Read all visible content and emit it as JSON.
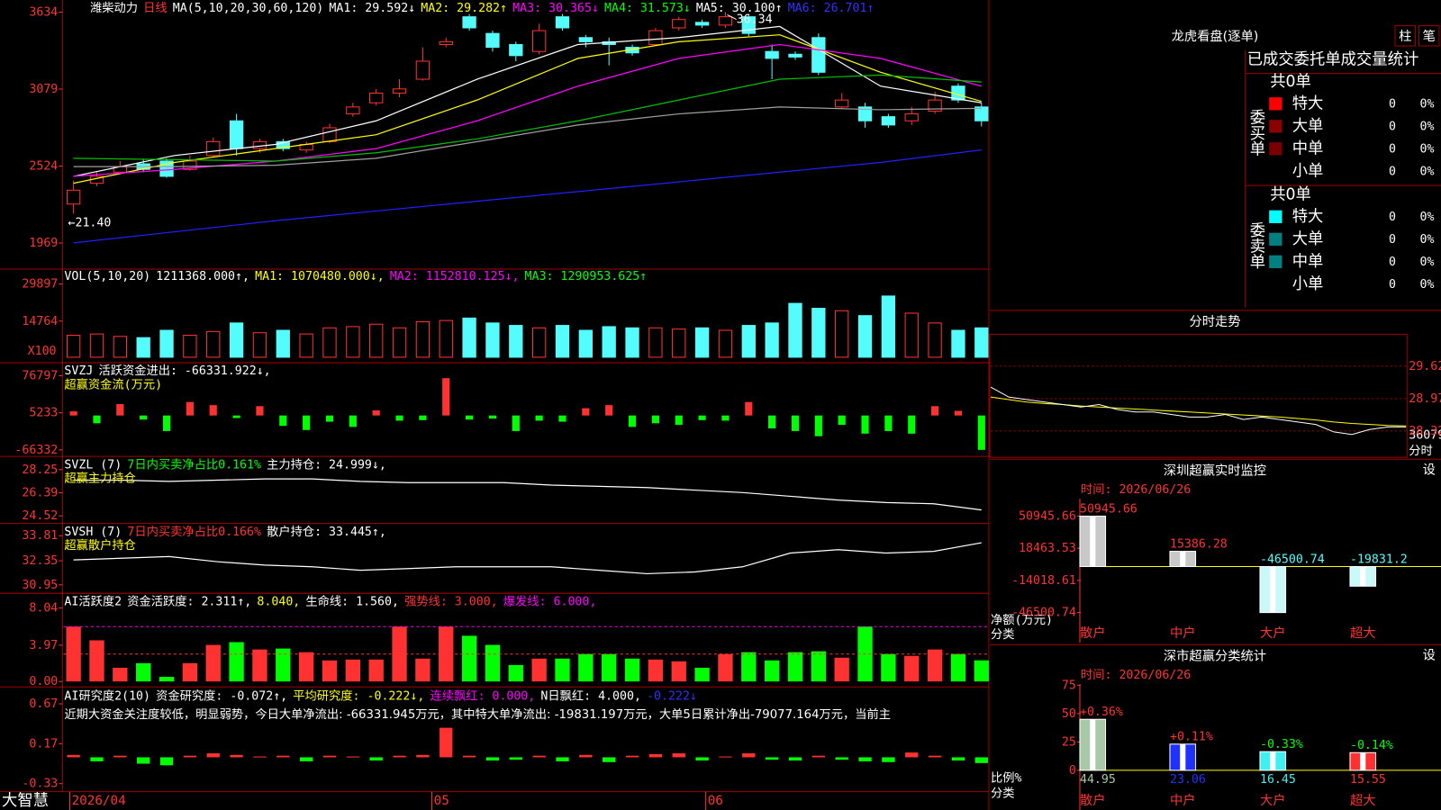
{
  "main": {
    "legend": [
      {
        "text": "潍柴动力",
        "color": "#ffffff"
      },
      {
        "text": "日线",
        "color": "#ff3232"
      },
      {
        "text": "MA(5,10,20,30,60,120)",
        "color": "#ffffff"
      },
      {
        "text": "MA1: 29.592↓",
        "color": "#ffffff"
      },
      {
        "text": "MA2: 29.282↑",
        "color": "#ffff00"
      },
      {
        "text": "MA3: 30.365↓",
        "color": "#ff00ff"
      },
      {
        "text": "MA4: 31.573↓",
        "color": "#00ff00"
      },
      {
        "text": "MA5: 30.100↑",
        "color": "#ffffff"
      },
      {
        "text": "MA6: 26.701↑",
        "color": "#3030ff"
      }
    ],
    "ylim": [
      1788,
      3721
    ],
    "yticks": [
      1969,
      2524,
      3079,
      3634
    ],
    "high_label": "36.34",
    "low_label": "←21.40",
    "candles": [
      [
        2250,
        2350,
        2420,
        2180
      ],
      [
        2400,
        2450,
        2480,
        2380
      ],
      [
        2480,
        2520,
        2560,
        2470
      ],
      [
        2540,
        2500,
        2570,
        2480
      ],
      [
        2560,
        2450,
        2580,
        2440
      ],
      [
        2500,
        2560,
        2600,
        2490
      ],
      [
        2600,
        2700,
        2730,
        2590
      ],
      [
        2850,
        2650,
        2900,
        2600
      ],
      [
        2650,
        2700,
        2720,
        2620
      ],
      [
        2700,
        2650,
        2720,
        2630
      ],
      [
        2640,
        2680,
        2700,
        2620
      ],
      [
        2700,
        2800,
        2830,
        2690
      ],
      [
        2900,
        2950,
        2980,
        2880
      ],
      [
        2980,
        3050,
        3080,
        2960
      ],
      [
        3050,
        3080,
        3150,
        3020
      ],
      [
        3150,
        3280,
        3380,
        3140
      ],
      [
        3400,
        3420,
        3450,
        3380
      ],
      [
        3600,
        3520,
        3620,
        3500
      ],
      [
        3480,
        3380,
        3500,
        3350
      ],
      [
        3400,
        3320,
        3420,
        3280
      ],
      [
        3350,
        3500,
        3550,
        3330
      ],
      [
        3600,
        3520,
        3620,
        3500
      ],
      [
        3450,
        3420,
        3470,
        3380
      ],
      [
        3420,
        3400,
        3450,
        3250
      ],
      [
        3380,
        3340,
        3400,
        3320
      ],
      [
        3400,
        3500,
        3520,
        3390
      ],
      [
        3520,
        3580,
        3600,
        3500
      ],
      [
        3560,
        3540,
        3580,
        3520
      ],
      [
        3540,
        3600,
        3634,
        3520
      ],
      [
        3600,
        3480,
        3620,
        3460
      ],
      [
        3350,
        3300,
        3400,
        3150
      ],
      [
        3330,
        3310,
        3350,
        3290
      ],
      [
        3450,
        3200,
        3480,
        3180
      ],
      [
        2950,
        3000,
        3050,
        2940
      ],
      [
        2950,
        2850,
        2980,
        2800
      ],
      [
        2880,
        2820,
        2900,
        2800
      ],
      [
        2850,
        2900,
        2950,
        2820
      ],
      [
        2920,
        3000,
        3060,
        2900
      ],
      [
        3100,
        3000,
        3120,
        2980
      ],
      [
        2950,
        2850,
        2980,
        2810
      ]
    ],
    "ma_lines": [
      {
        "color": "#ffffff",
        "values": [
          2450,
          2600,
          2680,
          2850,
          3150,
          3400,
          3450,
          3530,
          3100,
          2980
        ]
      },
      {
        "color": "#ffff00",
        "values": [
          2400,
          2550,
          2650,
          2750,
          3000,
          3300,
          3420,
          3470,
          3200,
          2990
        ]
      },
      {
        "color": "#ff00ff",
        "values": [
          2450,
          2500,
          2560,
          2650,
          2850,
          3100,
          3300,
          3400,
          3300,
          3100
        ]
      },
      {
        "color": "#00c000",
        "values": [
          2580,
          2570,
          2560,
          2620,
          2720,
          2850,
          3000,
          3150,
          3180,
          3130
        ]
      },
      {
        "color": "#a0a0a0",
        "values": [
          2520,
          2520,
          2530,
          2580,
          2700,
          2820,
          2900,
          2950,
          2930,
          2940
        ]
      },
      {
        "color": "#2020ff",
        "values": [
          1970,
          2050,
          2130,
          2200,
          2270,
          2340,
          2410,
          2480,
          2550,
          2640
        ]
      }
    ]
  },
  "volume": {
    "legend": [
      {
        "text": "VOL(5,10,20)",
        "color": "#ffffff"
      },
      {
        "text": "1211368.000↑,",
        "color": "#ffffff"
      },
      {
        "text": "MA1: 1070480.000↓,",
        "color": "#ffff00"
      },
      {
        "text": "MA2: 1152810.125↓,",
        "color": "#ff00ff"
      },
      {
        "text": "MA3: 1290953.625↑",
        "color": "#00ff00"
      }
    ],
    "unit_label": "X100",
    "ylim": [
      0,
      36000
    ],
    "yticks": [
      14764,
      29897
    ],
    "values": [
      9000,
      9500,
      8500,
      8000,
      11000,
      9000,
      10500,
      14000,
      10000,
      11000,
      9500,
      12000,
      12500,
      13500,
      12000,
      14500,
      15000,
      16000,
      14000,
      13000,
      12000,
      13000,
      11000,
      12500,
      12000,
      12000,
      11500,
      12000,
      11000,
      13000,
      14000,
      22000,
      20000,
      19000,
      17000,
      25000,
      18000,
      14000,
      11000,
      12000
    ]
  },
  "svzj": {
    "legend": [
      {
        "text": "SVZJ",
        "color": "#ffffff"
      },
      {
        "text": "活跃资金进出: -66331.922↓,",
        "color": "#ffffff"
      }
    ],
    "legend2": [
      {
        "text": "超赢资金流(万元)",
        "color": "#ffff00"
      }
    ],
    "ylim": [
      -79000,
      100000
    ],
    "yticks": [
      -66332,
      5233,
      76797
    ],
    "values": [
      8000,
      -15000,
      22000,
      -8000,
      -30000,
      26000,
      20000,
      -5000,
      18000,
      -20000,
      -28000,
      -12000,
      -22000,
      10000,
      -10000,
      -9000,
      72000,
      -8000,
      -6000,
      -30000,
      -10000,
      -12000,
      14000,
      20000,
      -22000,
      -15000,
      -18000,
      -9000,
      -10000,
      26000,
      -25000,
      -30000,
      -40000,
      -18000,
      -35000,
      -30000,
      -35000,
      18000,
      9000,
      -66331.922
    ]
  },
  "svzl": {
    "legend": [
      {
        "text": "SVZL (7)",
        "color": "#ffffff"
      },
      {
        "text": "7日内买卖净占比0.161%",
        "color": "#00ff00"
      },
      {
        "text": "主力持仓: 24.999↓,",
        "color": "#ffffff"
      }
    ],
    "legend2": [
      {
        "text": "超赢主力持仓",
        "color": "#ffff00"
      }
    ],
    "ylim": [
      23.91,
      29.24
    ],
    "yticks": [
      24.52,
      26.39,
      28.25
    ],
    "values": [
      27.4,
      27.4,
      27.3,
      27.4,
      27.5,
      27.5,
      27.3,
      27.2,
      27.2,
      27.2,
      27.0,
      26.9,
      26.8,
      26.6,
      26.4,
      26.1,
      25.8,
      25.6,
      25.5,
      25.0
    ]
  },
  "svsh": {
    "legend": [
      {
        "text": "SVSH (7)",
        "color": "#ffffff"
      },
      {
        "text": "7日内买卖净占比0.166%",
        "color": "#ff3232"
      },
      {
        "text": "散户持仓: 33.445↑,",
        "color": "#ffffff"
      }
    ],
    "legend2": [
      {
        "text": "超赢散户持仓",
        "color": "#ffff00"
      }
    ],
    "ylim": [
      30.46,
      34.47
    ],
    "yticks": [
      30.95,
      32.35,
      33.81
    ],
    "values": [
      32.4,
      32.5,
      32.6,
      32.3,
      32.1,
      32.0,
      31.8,
      31.9,
      32.0,
      32.0,
      32.0,
      31.8,
      31.6,
      31.7,
      32.0,
      32.8,
      33.0,
      32.8,
      32.9,
      33.4
    ]
  },
  "ai_active": {
    "legend": [
      {
        "text": "AI活跃度2",
        "color": "#ffffff"
      },
      {
        "text": "资金活跃度: 2.311↑,",
        "color": "#ffffff"
      },
      {
        "text": "8.040,",
        "color": "#ffff00"
      },
      {
        "text": "生命线: 1.560,",
        "color": "#ffffff"
      },
      {
        "text": "强势线: 3.000,",
        "color": "#ff3232"
      },
      {
        "text": "爆发线: 6.000,",
        "color": "#ff00ff"
      }
    ],
    "ylim": [
      -0.6,
      9.55
    ],
    "yticks": [
      {
        "value": 0,
        "label": "0.00"
      },
      3.97,
      8.04
    ],
    "levels": [
      {
        "value": 3,
        "color": "#ff3232"
      },
      {
        "value": 6,
        "color": "#ff00ff"
      }
    ],
    "values": [
      6,
      4.5,
      1.5,
      2,
      0.5,
      2,
      4,
      4.3,
      3.5,
      3.6,
      3.2,
      2.3,
      2.4,
      2.4,
      6,
      2.5,
      6,
      5,
      4,
      1.8,
      2.5,
      2.5,
      3,
      3,
      2.5,
      2.4,
      2.2,
      1.5,
      3,
      3.2,
      2.3,
      3.2,
      3.3,
      2.6,
      6,
      3,
      2.8,
      3.5,
      3,
      2.311
    ]
  },
  "ai_research": {
    "legend": [
      {
        "text": "AI研究度2(10)",
        "color": "#ffffff"
      },
      {
        "text": "资金研究度: -0.072↑,",
        "color": "#ffffff"
      },
      {
        "text": "平均研究度: -0.222↓,",
        "color": "#ffff00"
      },
      {
        "text": "连续飘红: 0.000,",
        "color": "#ff00ff"
      },
      {
        "text": "N日飘红: 4.000,",
        "color": "#ffffff"
      },
      {
        "text": "-0.222↓",
        "color": "#3030ff"
      }
    ],
    "comment": "近期大资金关注度较低，明显弱势，今日大单净流出: -66331.945万元，其中特大单净流出: -19831.197万元，大单5日累计净出-79077.164万元，当前主",
    "ylim": [
      -0.43,
      0.87
    ],
    "yticks": [
      -0.33,
      0.17,
      0.67
    ],
    "values": [
      0.03,
      -0.05,
      0.02,
      -0.08,
      -0.1,
      0.02,
      0.05,
      0.03,
      0.01,
      0.02,
      -0.05,
      0.02,
      0.01,
      -0.04,
      0.02,
      0.03,
      0.37,
      0.02,
      -0.04,
      -0.03,
      0.02,
      -0.05,
      0.03,
      -0.06,
      0.02,
      0.04,
      0.05,
      -0.04,
      0.01,
      0.05,
      -0.03,
      -0.04,
      0.02,
      -0.03,
      -0.05,
      -0.06,
      0.06,
      0.02,
      -0.04,
      -0.072
    ]
  },
  "footer": {
    "brand": "大智慧",
    "dates": [
      "2026/04",
      "05",
      "06"
    ]
  },
  "dragon": {
    "title": "龙虎看盘(逐单)",
    "buttons": [
      "柱",
      "笔"
    ],
    "subtitle": "已成交委托单成交量统计",
    "groups": [
      {
        "label": "委买单",
        "total": "共0单",
        "rows": [
          {
            "name": "特大",
            "count": "0",
            "pct": "0%",
            "color": "#ff0000"
          },
          {
            "name": "大单",
            "count": "0",
            "pct": "0%",
            "color": "#8b0000"
          },
          {
            "name": "中单",
            "count": "0",
            "pct": "0%",
            "color": "#7a0000"
          },
          {
            "name": "小单",
            "count": "0",
            "pct": "0%"
          }
        ]
      },
      {
        "label": "委卖单",
        "total": "共0单",
        "rows": [
          {
            "name": "特大",
            "count": "0",
            "pct": "0%",
            "color": "#00ffff"
          },
          {
            "name": "大单",
            "count": "0",
            "pct": "0%",
            "color": "#008080"
          },
          {
            "name": "中单",
            "count": "0",
            "pct": "0%",
            "color": "#008080"
          },
          {
            "name": "小单",
            "count": "0",
            "pct": "0%"
          }
        ]
      }
    ]
  },
  "intraday": {
    "title": "分时走势",
    "ylim": [
      27.79,
      30.26
    ],
    "yticks": [
      28.32,
      28.97,
      29.62
    ],
    "vol_max": 36079,
    "unit_label": "分时",
    "price": [
      29.2,
      29.0,
      28.95,
      28.9,
      28.85,
      28.8,
      28.85,
      28.75,
      28.7,
      28.7,
      28.65,
      28.6,
      28.6,
      28.65,
      28.55,
      28.6,
      28.55,
      28.5,
      28.45,
      28.3,
      28.25,
      28.35,
      28.4,
      28.4
    ],
    "average": [
      29.0,
      28.95,
      28.9,
      28.87,
      28.85,
      28.82,
      28.8,
      28.78,
      28.76,
      28.74,
      28.72,
      28.7,
      28.68,
      28.66,
      28.64,
      28.62,
      28.6,
      28.57,
      28.54,
      28.5,
      28.47,
      28.45,
      28.43,
      28.42
    ]
  },
  "sz_monitor": {
    "title": "深圳超赢实时监控",
    "button": "设",
    "time": "时间: 2026/06/26",
    "ylim": [
      -77127,
      87140
    ],
    "yticks": [
      -46500.74,
      -14018.61,
      18463.53,
      50945.66
    ],
    "categories": [
      "散户",
      "中户",
      "大户",
      "超大"
    ],
    "values": [
      50945.66,
      15386.28,
      -46500.74,
      -19831.2
    ],
    "colors": [
      "#c8c8c8",
      "#c8c8c8",
      "#c8f8f8",
      "#c8f8f8"
    ],
    "label_colors": [
      "#ff3232",
      "#ff3232",
      "#54fcfc",
      "#54fcfc"
    ],
    "y_label": "净额(万元)",
    "x_label": "分类"
  },
  "sz_class": {
    "title": "深市超赢分类统计",
    "button": "设",
    "time": "时间: 2026/06/26",
    "ylim": [
      -35,
      92.1
    ],
    "yticks": [
      0,
      25,
      50,
      75
    ],
    "categories": [
      "散户",
      "中户",
      "大户",
      "超大"
    ],
    "values": [
      44.95,
      23.06,
      16.45,
      15.55
    ],
    "changes": [
      "+0.36%",
      "+0.11%",
      "-0.33%",
      "-0.14%"
    ],
    "colors": [
      "#a8c8a8",
      "#2030ff",
      "#40f0f0",
      "#ff3030"
    ],
    "change_colors": [
      "#ff3232",
      "#ff3232",
      "#00ff00",
      "#00ff00"
    ],
    "y_label": "比例%",
    "x_label": "分类"
  }
}
